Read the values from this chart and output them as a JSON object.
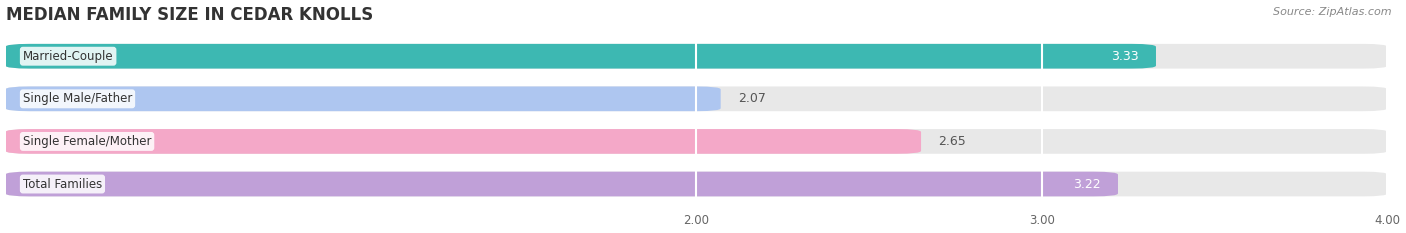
{
  "title": "MEDIAN FAMILY SIZE IN CEDAR KNOLLS",
  "source": "Source: ZipAtlas.com",
  "categories": [
    "Married-Couple",
    "Single Male/Father",
    "Single Female/Mother",
    "Total Families"
  ],
  "values": [
    3.33,
    2.07,
    2.65,
    3.22
  ],
  "bar_colors": [
    "#3db8b2",
    "#aec6f0",
    "#f4a8c8",
    "#c0a0d8"
  ],
  "bar_bg_color": "#e8e8e8",
  "xlim": [
    0,
    4.0
  ],
  "xticks": [
    2.0,
    3.0,
    4.0
  ],
  "xtick_labels": [
    "2.00",
    "3.00",
    "4.00"
  ],
  "title_fontsize": 12,
  "bar_height": 0.58,
  "bar_gap": 0.15,
  "figsize": [
    14.06,
    2.33
  ],
  "dpi": 100,
  "background_color": "#ffffff",
  "grid_color": "#ffffff",
  "value_fontsize": 9,
  "label_fontsize": 8.5,
  "tick_fontsize": 8.5,
  "source_fontsize": 8
}
